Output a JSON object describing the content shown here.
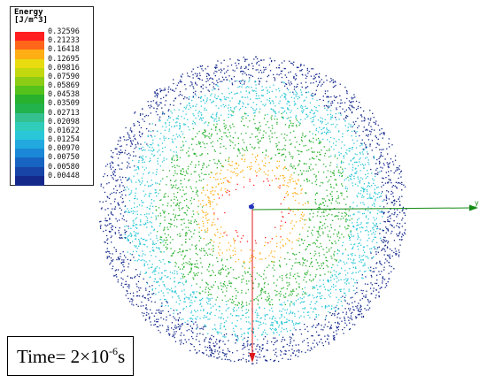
{
  "legend": {
    "title": "Energy",
    "unit": "[J/m^3]",
    "levels": [
      {
        "label": "0.32596",
        "color": "#ff1f1f"
      },
      {
        "label": "0.21233",
        "color": "#ff6619"
      },
      {
        "label": "0.16418",
        "color": "#ffae14"
      },
      {
        "label": "0.12695",
        "color": "#e8dc10"
      },
      {
        "label": "0.09816",
        "color": "#c2d80f"
      },
      {
        "label": "0.07590",
        "color": "#8ccc14"
      },
      {
        "label": "0.05869",
        "color": "#55c21c"
      },
      {
        "label": "0.04538",
        "color": "#27b12c"
      },
      {
        "label": "0.03509",
        "color": "#22b34c"
      },
      {
        "label": "0.02713",
        "color": "#34c08f"
      },
      {
        "label": "0.02098",
        "color": "#2fcdba"
      },
      {
        "label": "0.01622",
        "color": "#2ac7d8"
      },
      {
        "label": "0.01254",
        "color": "#21a9e0"
      },
      {
        "label": "0.00970",
        "color": "#1a88d6"
      },
      {
        "label": "0.00750",
        "color": "#1864c2"
      },
      {
        "label": "0.00580",
        "color": "#1844a8"
      },
      {
        "label": "0.00448",
        "color": "#14288c"
      }
    ]
  },
  "axes": {
    "y_label": "y",
    "x_axis_color": "#e01818",
    "y_axis_color": "#138a13"
  },
  "time": {
    "prefix": "Time= 2×10",
    "exponent": "-6",
    "suffix": "s"
  },
  "colors": {
    "ring_red": "#ff1f1f",
    "ring_orange": "#ffae14",
    "ring_green": "#27b12c",
    "ring_cyan": "#2ac7d8",
    "ring_blue": "#14288c"
  }
}
